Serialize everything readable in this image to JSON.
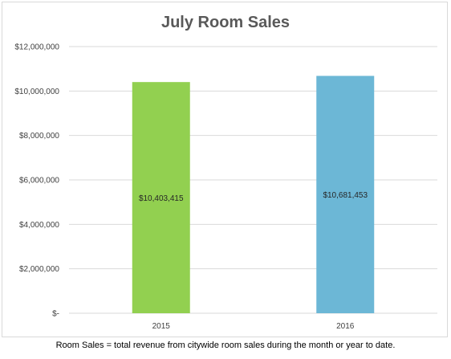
{
  "chart_data": {
    "type": "bar",
    "title": "July Room Sales",
    "categories": [
      "2015",
      "2016"
    ],
    "values": [
      10403415,
      10681453
    ],
    "data_labels": [
      "$10,403,415",
      "$10,681,453"
    ],
    "bar_colors": [
      "#92d050",
      "#6cb7d6"
    ],
    "ylim": [
      0,
      12000000
    ],
    "y_ticks": [
      {
        "value": 12000000,
        "label": "$12,000,000"
      },
      {
        "value": 10000000,
        "label": "$10,000,000"
      },
      {
        "value": 8000000,
        "label": "$8,000,000"
      },
      {
        "value": 6000000,
        "label": "$6,000,000"
      },
      {
        "value": 4000000,
        "label": "$4,000,000"
      },
      {
        "value": 2000000,
        "label": "$2,000,000"
      },
      {
        "value": 0,
        "label": "$-"
      }
    ],
    "grid": true,
    "xlabel": "",
    "ylabel": ""
  },
  "footnote": "Room Sales = total revenue from citywide room sales during the month or year to date.",
  "colors": {
    "gridline": "#d9d9d9",
    "border": "#d9d9d9"
  }
}
